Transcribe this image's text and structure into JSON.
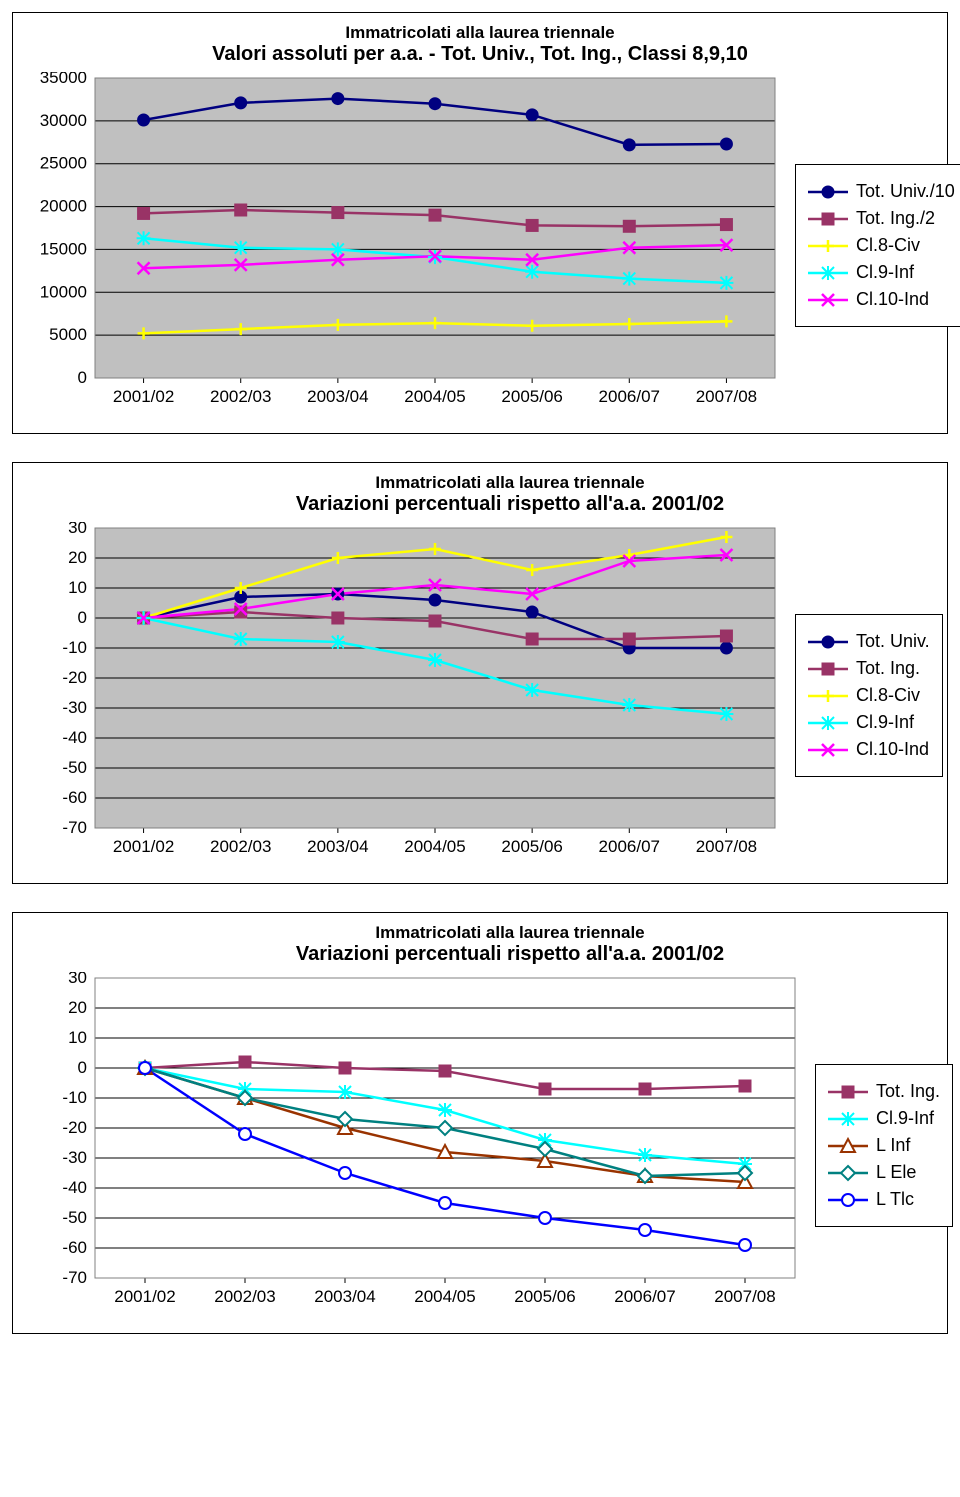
{
  "common": {
    "categories": [
      "2001/02",
      "2002/03",
      "2003/04",
      "2004/05",
      "2005/06",
      "2006/07",
      "2007/08"
    ],
    "supertitle": "Immatricolati alla laurea triennale",
    "plot_bg": "#c0c0c0",
    "plot_bg_white": "#ffffff",
    "grid_color": "#000000",
    "axis_font_size": 17,
    "title_font_size": 17,
    "subtitle_font_size": 20,
    "legend_font_size": 18
  },
  "chart1": {
    "subtitle": "Valori assoluti per a.a. - Tot. Univ., Tot. Ing., Classi 8,9,10",
    "ymin": 0,
    "ymax": 35000,
    "ystep": 5000,
    "plot_bg": "#c0c0c0",
    "series": [
      {
        "name": "Tot. Univ./10",
        "color": "#000080",
        "marker": "filled-circle",
        "values": [
          30100,
          32100,
          32600,
          32000,
          30700,
          27200,
          27300
        ]
      },
      {
        "name": "Tot. Ing./2",
        "color": "#993366",
        "marker": "filled-square",
        "values": [
          19200,
          19600,
          19300,
          19000,
          17800,
          17700,
          17900
        ]
      },
      {
        "name": "Cl.8-Civ",
        "color": "#ffff00",
        "marker": "plus",
        "values": [
          5200,
          5700,
          6200,
          6400,
          6100,
          6300,
          6600
        ]
      },
      {
        "name": "Cl.9-Inf",
        "color": "#00ffff",
        "marker": "star",
        "values": [
          16300,
          15200,
          15000,
          14100,
          12400,
          11600,
          11100
        ]
      },
      {
        "name": "Cl.10-Ind",
        "color": "#ff00ff",
        "marker": "x",
        "values": [
          12800,
          13200,
          13800,
          14200,
          13800,
          15200,
          15500
        ]
      }
    ]
  },
  "chart2": {
    "subtitle": "Variazioni percentuali rispetto all'a.a. 2001/02",
    "ymin": -70,
    "ymax": 30,
    "ystep": 10,
    "plot_bg": "#c0c0c0",
    "series": [
      {
        "name": "Tot. Univ.",
        "color": "#000080",
        "marker": "filled-circle",
        "values": [
          0,
          7,
          8,
          6,
          2,
          -10,
          -10
        ]
      },
      {
        "name": "Tot. Ing.",
        "color": "#993366",
        "marker": "filled-square",
        "values": [
          0,
          2,
          0,
          -1,
          -7,
          -7,
          -6
        ]
      },
      {
        "name": "Cl.8-Civ",
        "color": "#ffff00",
        "marker": "plus",
        "values": [
          0,
          10,
          20,
          23,
          16,
          21,
          27
        ]
      },
      {
        "name": "Cl.9-Inf",
        "color": "#00ffff",
        "marker": "star",
        "values": [
          0,
          -7,
          -8,
          -14,
          -24,
          -29,
          -32
        ]
      },
      {
        "name": "Cl.10-Ind",
        "color": "#ff00ff",
        "marker": "x",
        "values": [
          0,
          3,
          8,
          11,
          8,
          19,
          21
        ]
      }
    ]
  },
  "chart3": {
    "subtitle": "Variazioni percentuali rispetto all'a.a. 2001/02",
    "ymin": -70,
    "ymax": 30,
    "ystep": 10,
    "plot_bg": "#ffffff",
    "series": [
      {
        "name": "Tot. Ing.",
        "color": "#993366",
        "marker": "filled-square",
        "values": [
          0,
          2,
          0,
          -1,
          -7,
          -7,
          -6
        ]
      },
      {
        "name": "Cl.9-Inf",
        "color": "#00ffff",
        "marker": "star",
        "values": [
          0,
          -7,
          -8,
          -14,
          -24,
          -29,
          -32
        ]
      },
      {
        "name": "L  Inf",
        "color": "#993300",
        "marker": "open-triangle",
        "values": [
          0,
          -10,
          -20,
          -28,
          -31,
          -36,
          -38
        ]
      },
      {
        "name": "L  Ele",
        "color": "#008080",
        "marker": "open-diamond",
        "values": [
          0,
          -10,
          -17,
          -20,
          -27,
          -36,
          -35
        ]
      },
      {
        "name": "L  Tlc",
        "color": "#0000ff",
        "marker": "open-circle",
        "values": [
          0,
          -22,
          -35,
          -45,
          -50,
          -54,
          -59
        ]
      }
    ]
  }
}
